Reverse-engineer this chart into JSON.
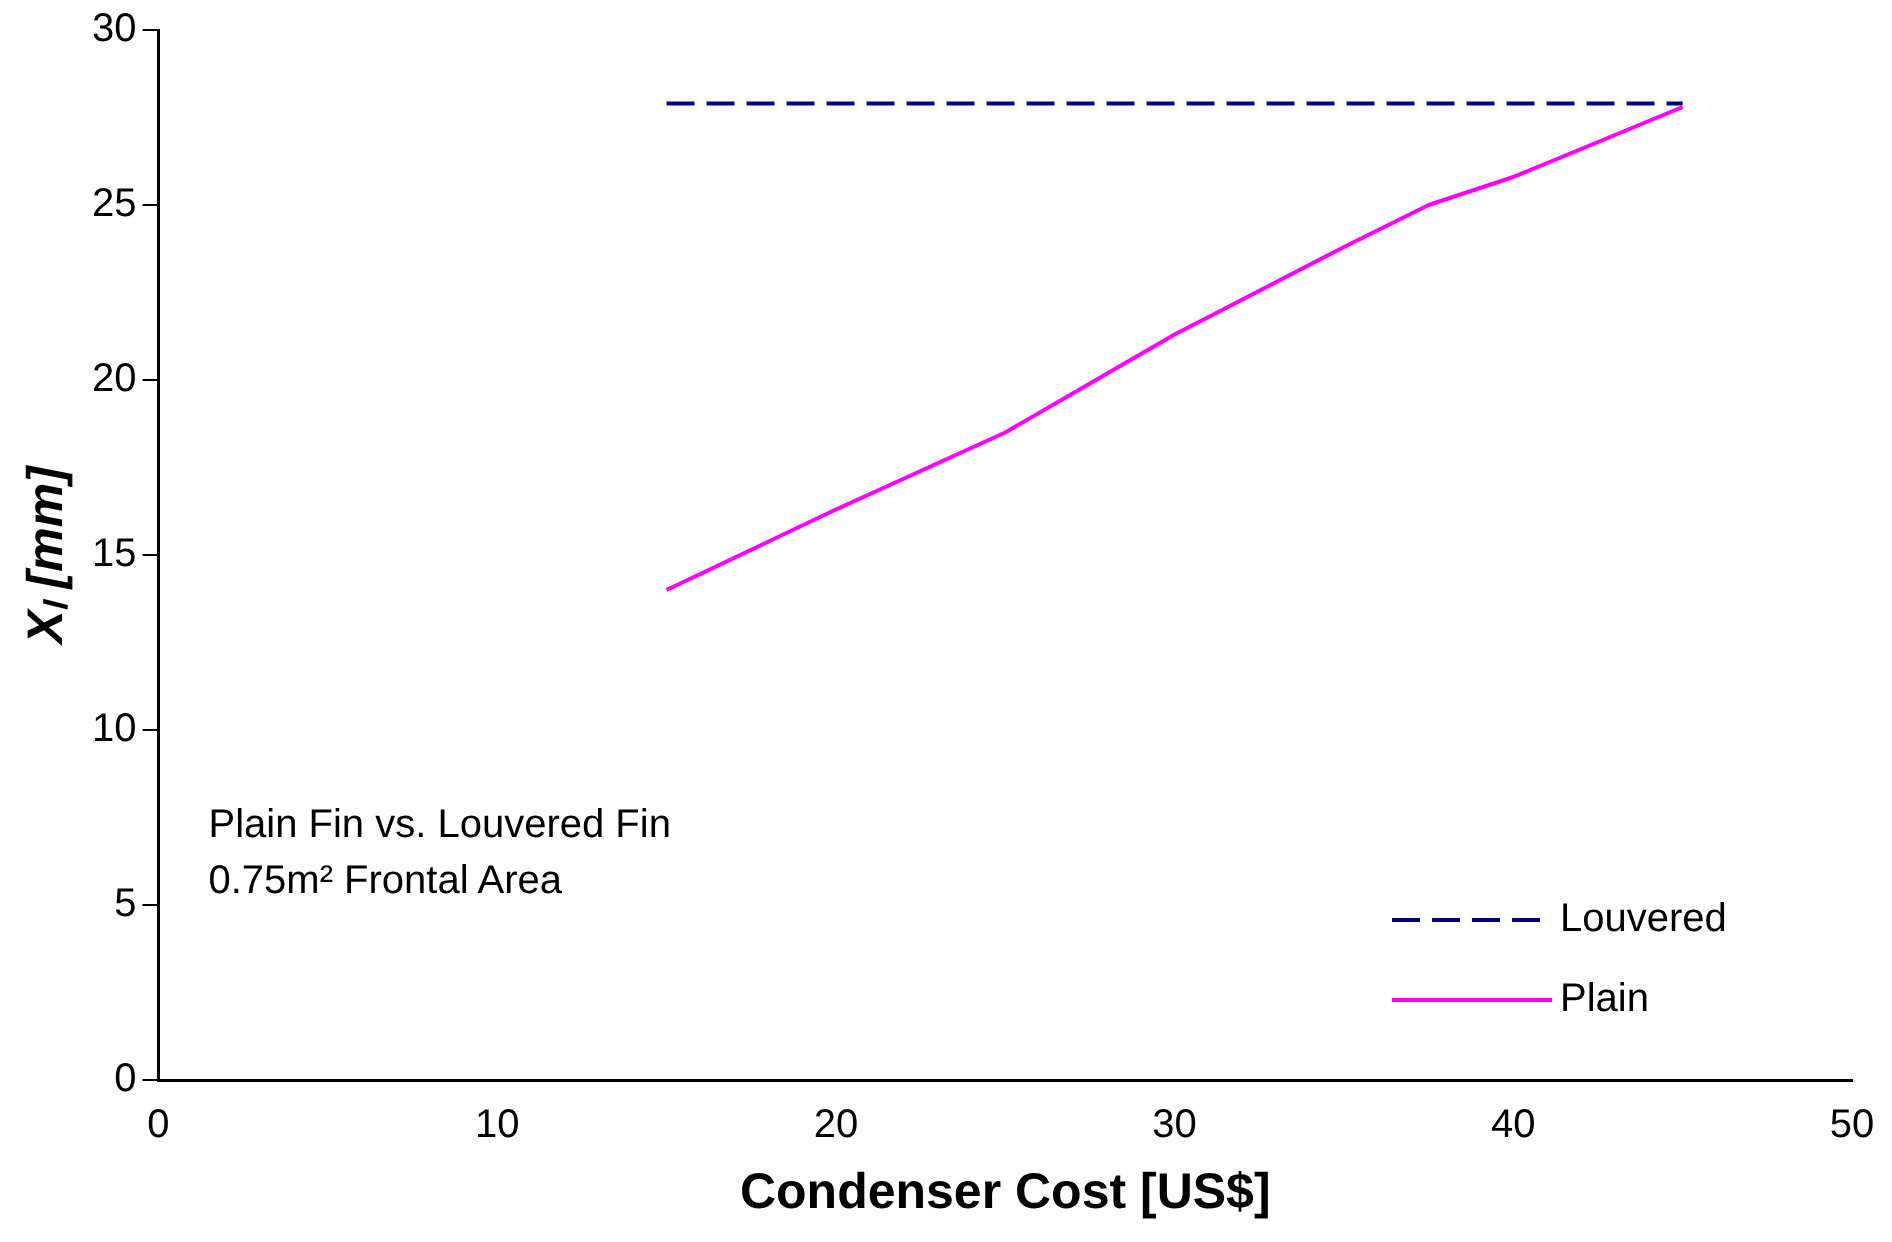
{
  "chart_data": {
    "type": "line",
    "xlabel": "Condenser Cost [US$]",
    "ylabel": "Xₗ [mm]",
    "xlim": [
      0,
      50
    ],
    "xticks": [
      0,
      10,
      20,
      30,
      40,
      50
    ],
    "ylim": [
      0,
      30
    ],
    "yticks": [
      0,
      5,
      10,
      15,
      20,
      25,
      30
    ],
    "grid": false,
    "legend": "bottom right",
    "marker": "none",
    "annotations": [
      "Plain Fin vs. Louvered Fin",
      "0.75m² Frontal Area"
    ],
    "series": [
      {
        "name": "Louvered",
        "color": "#000080",
        "line_style": "dashed",
        "x": [
          15,
          45
        ],
        "values": [
          27.9,
          27.9
        ]
      },
      {
        "name": "Plain",
        "color": "#ff00ff",
        "line_style": "solid",
        "x": [
          15,
          20,
          25,
          27.5,
          30,
          35,
          37.5,
          40,
          45
        ],
        "values": [
          14.0,
          16.3,
          18.5,
          19.9,
          21.3,
          23.8,
          25.0,
          25.8,
          27.8
        ]
      }
    ]
  }
}
